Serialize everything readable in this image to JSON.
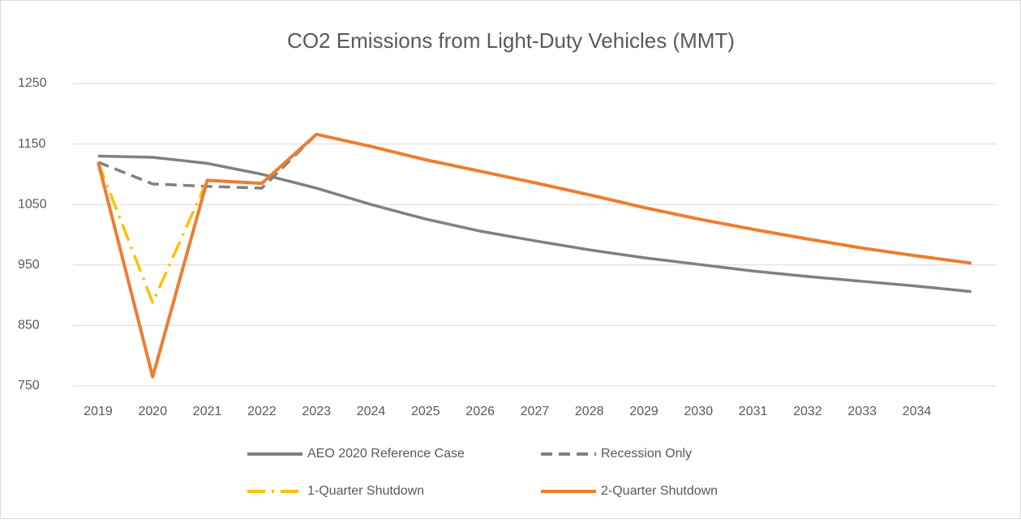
{
  "chart_data": {
    "type": "line",
    "title": "CO2 Emissions from Light-Duty Vehicles (MMT)",
    "categories": [
      "2019",
      "2020",
      "2021",
      "2022",
      "2023",
      "2024",
      "2025",
      "2026",
      "2027",
      "2028",
      "2029",
      "2030",
      "2031",
      "2032",
      "2033",
      "2034",
      null
    ],
    "ylim": [
      750,
      1250
    ],
    "yticks": [
      750,
      850,
      950,
      1050,
      1150,
      1250
    ],
    "grid": true,
    "legend": "bottom",
    "series": [
      {
        "name": "AEO 2020 Reference Case",
        "color": "#808080",
        "dash": "solid",
        "values": [
          1130,
          1128,
          1118,
          1100,
          1077,
          1050,
          1026,
          1006,
          990,
          975,
          962,
          951,
          940,
          931,
          923,
          915,
          906
        ]
      },
      {
        "name": "Recession Only",
        "color": "#808080",
        "dash": "dashed",
        "values": [
          1120,
          1084,
          1080,
          1077,
          1166,
          1146,
          1124,
          1105,
          1086,
          1066,
          1045,
          1026,
          1009,
          993,
          978,
          965,
          953
        ]
      },
      {
        "name": "1-Quarter Shutdown",
        "color": "#ffc000",
        "dash": "dashdot",
        "values": [
          1120,
          888,
          1090,
          1085,
          1166,
          1146,
          1124,
          1105,
          1086,
          1066,
          1045,
          1026,
          1009,
          993,
          978,
          965,
          953
        ]
      },
      {
        "name": "2-Quarter Shutdown",
        "color": "#ed7d31",
        "dash": "solid",
        "values": [
          1120,
          765,
          1090,
          1085,
          1166,
          1146,
          1124,
          1105,
          1086,
          1066,
          1045,
          1026,
          1009,
          993,
          978,
          965,
          953
        ]
      }
    ]
  }
}
